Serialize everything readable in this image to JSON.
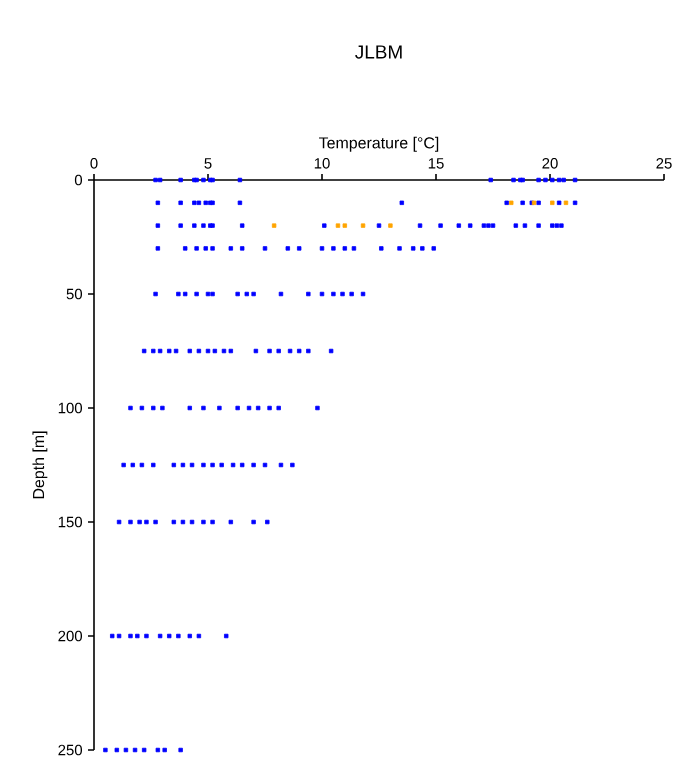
{
  "chart_data": {
    "type": "scatter",
    "title": "JLBM",
    "xlabel": "Temperature [°C]",
    "ylabel": "Depth [m]",
    "xlim": [
      0,
      25
    ],
    "xticks": [
      0,
      5,
      10,
      15,
      20,
      25
    ],
    "ylim": [
      250,
      0
    ],
    "yticks": [
      0,
      50,
      100,
      150,
      200,
      250
    ],
    "grid": false,
    "marker": "square",
    "series": [
      {
        "color": "#0000ff",
        "x": [
          2.7,
          2.9,
          3.8,
          4.4,
          4.5,
          4.8,
          5.1,
          5.2,
          6.4,
          17.4,
          18.4,
          18.7,
          18.8,
          19.5,
          19.8,
          20.1,
          20.4,
          20.6,
          21.1,
          2.8,
          3.8,
          4.4,
          4.6,
          4.9,
          5.1,
          5.2,
          6.4,
          13.5,
          18.1,
          18.8,
          19.2,
          19.5,
          20.4,
          21.1,
          2.8,
          3.8,
          4.4,
          4.8,
          5.1,
          5.2,
          6.5,
          10.1,
          12.5,
          14.3,
          15.2,
          16.0,
          16.5,
          17.1,
          17.3,
          17.5,
          18.5,
          18.9,
          19.5,
          20.1,
          20.3,
          20.5,
          2.8,
          4.0,
          4.5,
          4.9,
          5.2,
          6.0,
          6.5,
          7.5,
          8.5,
          9.0,
          10.0,
          10.5,
          11.0,
          11.4,
          12.6,
          13.4,
          14.0,
          14.4,
          14.9,
          2.7,
          3.7,
          4.0,
          4.5,
          5.0,
          5.2,
          6.3,
          6.7,
          7.0,
          8.2,
          9.4,
          10.0,
          10.5,
          10.9,
          11.3,
          11.8,
          2.2,
          2.6,
          2.9,
          3.3,
          3.6,
          4.2,
          4.6,
          5.0,
          5.3,
          5.7,
          6.0,
          7.1,
          7.7,
          8.1,
          8.6,
          9.0,
          9.4,
          10.4,
          1.6,
          2.1,
          2.6,
          3.0,
          4.2,
          4.8,
          5.5,
          6.3,
          6.8,
          7.2,
          7.7,
          8.1,
          9.8,
          1.3,
          1.7,
          2.1,
          2.6,
          3.5,
          3.9,
          4.3,
          4.8,
          5.2,
          5.6,
          6.1,
          6.5,
          7.0,
          7.5,
          8.2,
          8.7,
          1.1,
          1.6,
          2.0,
          2.3,
          2.7,
          3.5,
          3.9,
          4.3,
          4.8,
          5.2,
          6.0,
          7.0,
          7.6,
          0.8,
          1.1,
          1.6,
          1.9,
          2.3,
          2.9,
          3.3,
          3.7,
          4.2,
          4.6,
          5.8,
          0.5,
          1.0,
          1.4,
          1.8,
          2.2,
          2.8,
          3.1,
          3.8
        ],
        "values": [
          0,
          0,
          0,
          0,
          0,
          0,
          0,
          0,
          0,
          0,
          0,
          0,
          0,
          0,
          0,
          0,
          0,
          0,
          0,
          10,
          10,
          10,
          10,
          10,
          10,
          10,
          10,
          10,
          10,
          10,
          10,
          10,
          10,
          10,
          20,
          20,
          20,
          20,
          20,
          20,
          20,
          20,
          20,
          20,
          20,
          20,
          20,
          20,
          20,
          20,
          20,
          20,
          20,
          20,
          20,
          20,
          30,
          30,
          30,
          30,
          30,
          30,
          30,
          30,
          30,
          30,
          30,
          30,
          30,
          30,
          30,
          30,
          30,
          30,
          30,
          50,
          50,
          50,
          50,
          50,
          50,
          50,
          50,
          50,
          50,
          50,
          50,
          50,
          50,
          50,
          50,
          75,
          75,
          75,
          75,
          75,
          75,
          75,
          75,
          75,
          75,
          75,
          75,
          75,
          75,
          75,
          75,
          75,
          75,
          100,
          100,
          100,
          100,
          100,
          100,
          100,
          100,
          100,
          100,
          100,
          100,
          100,
          125,
          125,
          125,
          125,
          125,
          125,
          125,
          125,
          125,
          125,
          125,
          125,
          125,
          125,
          125,
          125,
          150,
          150,
          150,
          150,
          150,
          150,
          150,
          150,
          150,
          150,
          150,
          150,
          150,
          200,
          200,
          200,
          200,
          200,
          200,
          200,
          200,
          200,
          200,
          200,
          250,
          250,
          250,
          250,
          250,
          250,
          250,
          250
        ]
      },
      {
        "color": "#ffa500",
        "x": [
          18.3,
          19.3,
          20.1,
          20.7,
          7.9,
          10.7,
          11.0,
          11.8,
          13.0
        ],
        "values": [
          10,
          10,
          10,
          10,
          20,
          20,
          20,
          20,
          20
        ]
      }
    ]
  }
}
